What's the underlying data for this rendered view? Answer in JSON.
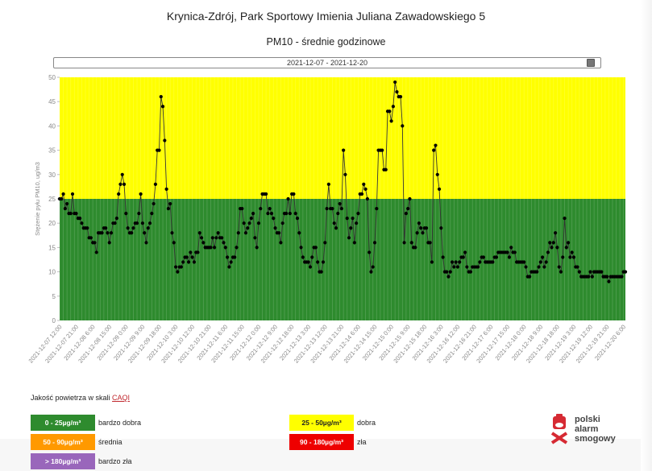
{
  "header": {
    "title": "Krynica-Zdrój, Park Sportowy Imienia Juliana Zawadowskiego 5",
    "subtitle": "PM10 - średnie godzinowe",
    "date_range": "2021-12-07  -  2021-12-20",
    "calendar_icon": "calendar-icon"
  },
  "chart_data": {
    "type": "line",
    "title": "PM10 - średnie godzinowe",
    "xlabel": "",
    "ylabel": "Stężenie pyłu PM10, ug/m3",
    "ylim": [
      0,
      50
    ],
    "yticks": [
      0,
      5,
      10,
      15,
      20,
      25,
      30,
      35,
      40,
      45,
      50
    ],
    "grid": false,
    "legend_position": "none",
    "background_bands": [
      {
        "from": 0,
        "to": 25,
        "color": "#2e8b2e",
        "label": "bardzo dobra"
      },
      {
        "from": 25,
        "to": 50,
        "color": "#ffff00",
        "label": "dobra"
      }
    ],
    "x_start": "2021-12-07 12:00",
    "x_step_hours": 1,
    "x_tick_labels": [
      "2021-12-07 12:00",
      "2021-12-07 21:00",
      "2021-12-08 6:00",
      "2021-12-08 15:00",
      "2021-12-09 0:00",
      "2021-12-09 9:00",
      "2021-12-09 18:00",
      "2021-12-10 3:00",
      "2021-12-10 12:00",
      "2021-12-10 21:00",
      "2021-12-11 6:00",
      "2021-12-11 15:00",
      "2021-12-12 0:00",
      "2021-12-12 9:00",
      "2021-12-12 18:00",
      "2021-12-13 3:00",
      "2021-12-13 12:00",
      "2021-12-13 21:00",
      "2021-12-14 6:00",
      "2021-12-14 15:00",
      "2021-12-15 0:00",
      "2021-12-15 9:00",
      "2021-12-15 18:00",
      "2021-12-16 3:00",
      "2021-12-16 12:00",
      "2021-12-16 21:00",
      "2021-12-17 6:00",
      "2021-12-17 15:00",
      "2021-12-18 0:00",
      "2021-12-18 9:00",
      "2021-12-18 18:00",
      "2021-12-19 3:00",
      "2021-12-19 12:00",
      "2021-12-19 21:00",
      "2021-12-20 6:00"
    ],
    "series": [
      {
        "name": "PM10",
        "color": "#000000",
        "values": [
          25,
          25,
          26,
          23,
          24,
          22,
          22,
          26,
          22,
          22,
          21,
          21,
          20,
          19,
          19,
          19,
          17,
          17,
          16,
          16,
          14,
          18,
          18,
          18,
          19,
          19,
          18,
          16,
          18,
          20,
          20,
          21,
          26,
          28,
          30,
          28,
          22,
          19,
          18,
          18,
          19,
          20,
          20,
          22,
          26,
          20,
          18,
          16,
          19,
          20,
          22,
          24,
          28,
          35,
          35,
          46,
          44,
          37,
          27,
          23,
          24,
          18,
          16,
          11,
          10,
          11,
          11,
          12,
          13,
          13,
          12,
          14,
          13,
          12,
          14,
          14,
          18,
          17,
          16,
          15,
          15,
          15,
          15,
          17,
          15,
          17,
          18,
          17,
          17,
          16,
          15,
          13,
          11,
          12,
          13,
          13,
          15,
          18,
          23,
          23,
          20,
          18,
          19,
          20,
          21,
          22,
          17,
          15,
          20,
          23,
          26,
          26,
          26,
          22,
          23,
          22,
          21,
          19,
          18,
          18,
          16,
          20,
          22,
          22,
          25,
          22,
          26,
          26,
          22,
          21,
          18,
          15,
          13,
          12,
          12,
          12,
          11,
          13,
          15,
          15,
          12,
          10,
          10,
          12,
          16,
          23,
          28,
          23,
          23,
          20,
          19,
          22,
          24,
          23,
          35,
          30,
          21,
          17,
          19,
          21,
          16,
          20,
          22,
          26,
          26,
          28,
          27,
          25,
          14,
          10,
          11,
          16,
          23,
          35,
          35,
          35,
          31,
          31,
          43,
          43,
          41,
          44,
          49,
          47,
          46,
          46,
          40,
          16,
          22,
          23,
          25,
          16,
          15,
          15,
          18,
          20,
          19,
          18,
          19,
          19,
          16,
          16,
          12,
          35,
          36,
          30,
          27,
          19,
          13,
          10,
          10,
          9,
          10,
          12,
          11,
          12,
          11,
          12,
          13,
          13,
          14,
          11,
          10,
          10,
          11,
          11,
          11,
          11,
          12,
          13,
          13,
          12,
          12,
          12,
          12,
          12,
          13,
          13,
          14,
          14,
          14,
          14,
          14,
          14,
          13,
          15,
          14,
          14,
          12,
          12,
          12,
          12,
          12,
          11,
          9,
          9,
          10,
          10,
          10,
          10,
          11,
          12,
          13,
          11,
          12,
          14,
          16,
          15,
          16,
          18,
          15,
          11,
          10,
          13,
          21,
          15,
          16,
          13,
          14,
          13,
          11,
          11,
          10,
          9,
          9,
          9,
          9,
          9,
          10,
          9,
          10,
          10,
          10,
          10,
          10,
          9,
          9,
          9,
          8,
          9,
          9,
          9,
          9,
          9,
          9,
          9,
          10,
          10
        ]
      }
    ]
  },
  "legend": {
    "title_prefix": "Jakość powietrza w skali ",
    "title_link": "CAQI",
    "items": [
      {
        "range": "0 - 25µg/m³",
        "label": "bardzo dobra",
        "color": "#2e8b2e",
        "text_color": "#ffffff"
      },
      {
        "range": "25 - 50µg/m³",
        "label": "dobra",
        "color": "#ffff00",
        "text_color": "#222222"
      },
      {
        "range": "50 - 90µg/m³",
        "label": "średnia",
        "color": "#ff9900",
        "text_color": "#ffffff"
      },
      {
        "range": "90 - 180µg/m³",
        "label": "zła",
        "color": "#ee0000",
        "text_color": "#ffffff"
      },
      {
        "range": "> 180µg/m³",
        "label": "bardzo zła",
        "color": "#9966bb",
        "text_color": "#ffffff"
      }
    ]
  },
  "logo": {
    "line1": "polski",
    "line2": "alarm",
    "line3": "smogowy",
    "color": "#d62a33"
  }
}
